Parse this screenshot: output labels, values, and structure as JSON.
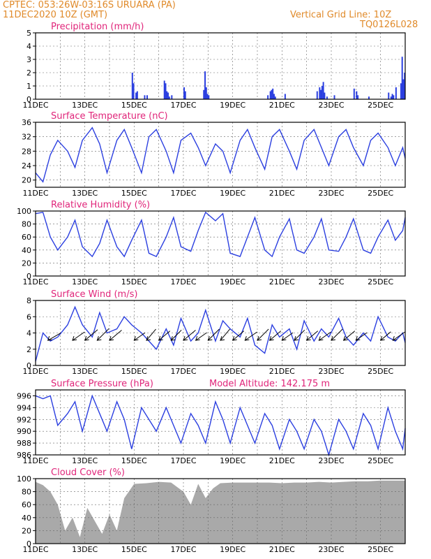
{
  "header": {
    "line1": "CPTEC:   053:26W-03:16S   URUARA (PA)",
    "line2": "11DEC2020 10Z (GMT)",
    "grid_note": "Vertical Grid Line: 10Z",
    "code": "TQ0126L028",
    "model_altitude": "Model Altitude: 142.175 m"
  },
  "colors": {
    "series": "#2b3fe0",
    "bars": "#2b3fe0",
    "cloud": "#a9a9a9",
    "title": "#e0257a",
    "header": "#e08a2a",
    "arrow": "#000000"
  },
  "x_ticks": [
    "11DEC",
    "13DEC",
    "15DEC",
    "17DEC",
    "19DEC",
    "21DEC",
    "23DEC",
    "25DEC"
  ],
  "chart_data": [
    {
      "id": "precip",
      "type": "bar",
      "title": "Precipitation (mm/h)",
      "ylim": [
        0,
        5
      ],
      "yticks": [
        0,
        1,
        2,
        3,
        4,
        5
      ],
      "x_days": [
        3.9,
        3.95,
        4.05,
        4.1,
        4.4,
        4.5,
        5.2,
        5.25,
        5.3,
        5.35,
        5.4,
        5.5,
        6.0,
        6.05,
        6.8,
        6.85,
        6.9,
        6.95,
        7.0,
        9.4,
        9.5,
        9.55,
        9.6,
        9.65,
        9.7,
        10.1,
        11.4,
        11.5,
        11.55,
        11.6,
        11.65,
        11.7,
        11.8,
        12.1,
        12.9,
        13.0,
        13.05,
        13.5,
        14.3,
        14.4,
        14.45,
        14.5,
        14.6,
        14.8,
        14.85,
        14.9,
        14.95
      ],
      "values": [
        2.0,
        1.2,
        0.5,
        0.6,
        0.3,
        0.3,
        1.4,
        1.2,
        0.6,
        0.5,
        0.2,
        0.3,
        0.9,
        0.6,
        0.7,
        2.1,
        0.9,
        0.4,
        0.3,
        0.3,
        0.6,
        0.7,
        0.8,
        0.4,
        0.2,
        0.4,
        0.6,
        0.9,
        0.7,
        1.0,
        1.3,
        0.5,
        0.2,
        0.3,
        0.8,
        0.6,
        0.3,
        0.2,
        0.5,
        0.2,
        0.4,
        0.3,
        0.9,
        1.2,
        3.2,
        1.5,
        2.0
      ]
    },
    {
      "id": "temp",
      "type": "line",
      "title": "Surface Temperature (nC)",
      "ylim": [
        18,
        36
      ],
      "yticks": [
        20,
        24,
        28,
        32,
        36
      ],
      "x_days": [
        0,
        0.3,
        0.6,
        0.9,
        1.3,
        1.6,
        1.9,
        2.3,
        2.6,
        2.9,
        3.3,
        3.6,
        3.9,
        4.3,
        4.6,
        4.9,
        5.3,
        5.6,
        5.9,
        6.3,
        6.6,
        6.9,
        7.3,
        7.6,
        7.9,
        8.3,
        8.6,
        8.9,
        9.3,
        9.6,
        9.9,
        10.3,
        10.6,
        10.9,
        11.3,
        11.6,
        11.9,
        12.3,
        12.6,
        12.9,
        13.3,
        13.6,
        13.9,
        14.3,
        14.6,
        14.9,
        15.0
      ],
      "values": [
        22,
        19.5,
        27,
        31,
        28,
        23.5,
        31,
        34.5,
        30,
        22,
        31,
        34,
        29,
        22,
        32,
        34,
        28,
        22,
        31,
        33,
        29,
        24,
        30,
        28,
        22,
        31,
        34,
        29,
        23,
        32,
        34,
        28,
        23,
        31,
        34,
        29,
        24,
        32,
        34,
        29,
        24,
        31,
        33,
        29,
        24,
        29,
        26
      ]
    },
    {
      "id": "rh",
      "type": "line",
      "title": "Relative Humidity (%)",
      "ylim": [
        0,
        100
      ],
      "yticks": [
        0,
        20,
        40,
        60,
        80,
        100
      ],
      "x_days": [
        0,
        0.3,
        0.6,
        0.9,
        1.3,
        1.6,
        1.9,
        2.3,
        2.6,
        2.9,
        3.3,
        3.6,
        3.9,
        4.3,
        4.6,
        4.9,
        5.3,
        5.6,
        5.9,
        6.3,
        6.6,
        6.9,
        7.3,
        7.6,
        7.9,
        8.3,
        8.6,
        8.9,
        9.3,
        9.6,
        9.9,
        10.3,
        10.6,
        10.9,
        11.3,
        11.6,
        11.9,
        12.3,
        12.6,
        12.9,
        13.3,
        13.6,
        13.9,
        14.3,
        14.6,
        14.9,
        15.0
      ],
      "values": [
        96,
        98,
        60,
        40,
        60,
        86,
        45,
        30,
        50,
        86,
        45,
        30,
        55,
        86,
        35,
        30,
        60,
        90,
        45,
        38,
        70,
        98,
        85,
        96,
        35,
        30,
        60,
        90,
        40,
        30,
        60,
        88,
        40,
        35,
        60,
        88,
        40,
        38,
        60,
        88,
        40,
        35,
        60,
        86,
        55,
        70,
        90
      ]
    },
    {
      "id": "wind",
      "type": "line",
      "title": "Surface Wind (m/s)",
      "ylim": [
        0,
        8
      ],
      "yticks": [
        0,
        2,
        4,
        6,
        8
      ],
      "x_days": [
        0,
        0.3,
        0.6,
        0.9,
        1.3,
        1.6,
        1.9,
        2.3,
        2.6,
        2.9,
        3.3,
        3.6,
        3.9,
        4.3,
        4.6,
        4.9,
        5.3,
        5.6,
        5.9,
        6.3,
        6.6,
        6.9,
        7.3,
        7.6,
        7.9,
        8.3,
        8.6,
        8.9,
        9.3,
        9.6,
        9.9,
        10.3,
        10.6,
        10.9,
        11.3,
        11.6,
        11.9,
        12.3,
        12.6,
        12.9,
        13.3,
        13.6,
        13.9,
        14.3,
        14.6,
        14.9,
        15.0
      ],
      "values": [
        0.5,
        4.0,
        3.0,
        3.5,
        5.0,
        7.2,
        5.0,
        3.5,
        6.5,
        4.0,
        4.5,
        6.0,
        5.0,
        4.0,
        3.0,
        2.0,
        4.5,
        2.5,
        5.8,
        3.0,
        4.0,
        6.8,
        3.0,
        5.5,
        4.5,
        3.5,
        5.8,
        2.5,
        1.5,
        5.0,
        3.5,
        4.5,
        2.0,
        5.5,
        3.0,
        4.5,
        3.5,
        5.8,
        3.5,
        2.5,
        4.0,
        3.0,
        6.0,
        3.5,
        3.0,
        4.0,
        2.8
      ],
      "arrows_x_days": [
        0.5,
        1.5,
        2.0,
        2.5,
        3.0,
        4.0,
        4.5,
        5.0,
        5.5,
        6.0,
        6.5,
        7.0,
        7.5,
        8.0,
        8.5,
        9.0,
        9.5,
        10.0,
        10.5,
        11.0,
        11.5,
        12.0,
        12.5,
        13.0,
        14.0,
        14.5
      ],
      "arrows_dir_deg": [
        210,
        215,
        220,
        225,
        220,
        215,
        230,
        220,
        225,
        220,
        215,
        225,
        230,
        220,
        215,
        225,
        220,
        215,
        225,
        220,
        215,
        225,
        220,
        215,
        220,
        215
      ],
      "arrows_speed": [
        3.5,
        3.5,
        4.0,
        4.0,
        3.8,
        3.2,
        3.5,
        3.5,
        3.5,
        3.8,
        3.2,
        3.8,
        3.5,
        3.5,
        3.5,
        3.8,
        3.5,
        3.2,
        3.5,
        3.5,
        3.5,
        3.8,
        3.5,
        3.2,
        3.2,
        3.5
      ]
    },
    {
      "id": "pres",
      "type": "line",
      "title": "Surface Pressure (hPa)",
      "ylim": [
        986,
        997
      ],
      "yticks": [
        986,
        988,
        990,
        992,
        994,
        996
      ],
      "x_days": [
        0,
        0.3,
        0.6,
        0.9,
        1.3,
        1.6,
        1.9,
        2.3,
        2.6,
        2.9,
        3.3,
        3.6,
        3.9,
        4.3,
        4.6,
        4.9,
        5.3,
        5.6,
        5.9,
        6.3,
        6.6,
        6.9,
        7.3,
        7.6,
        7.9,
        8.3,
        8.6,
        8.9,
        9.3,
        9.6,
        9.9,
        10.3,
        10.6,
        10.9,
        11.3,
        11.6,
        11.9,
        12.3,
        12.6,
        12.9,
        13.3,
        13.6,
        13.9,
        14.3,
        14.6,
        14.9,
        15.0
      ],
      "values": [
        996,
        995.5,
        996,
        991,
        993,
        995,
        990,
        996,
        993,
        990,
        995,
        992,
        987,
        994,
        992,
        990,
        994,
        991,
        988,
        993,
        991,
        988,
        995,
        992,
        988,
        994,
        991,
        988,
        993,
        991,
        987,
        992,
        990,
        987,
        992,
        990,
        986,
        992,
        990,
        987,
        993,
        991,
        987,
        994,
        990,
        987,
        990.5
      ]
    },
    {
      "id": "cloud",
      "type": "area",
      "title": "Cloud Cover (%)",
      "ylim": [
        0,
        100
      ],
      "yticks": [
        0,
        20,
        40,
        60,
        80,
        100
      ],
      "x_days": [
        0,
        0.3,
        0.6,
        0.9,
        1.2,
        1.5,
        1.8,
        2.1,
        2.4,
        2.7,
        3.0,
        3.3,
        3.6,
        4.0,
        4.5,
        5.0,
        5.5,
        6.0,
        6.3,
        6.6,
        6.9,
        7.2,
        7.5,
        8.0,
        8.5,
        9.0,
        9.5,
        10.0,
        10.5,
        11.0,
        11.5,
        12.0,
        12.5,
        13.0,
        13.5,
        14.0,
        14.5,
        15.0
      ],
      "values": [
        95,
        90,
        80,
        60,
        20,
        40,
        10,
        55,
        35,
        15,
        45,
        20,
        70,
        92,
        93,
        95,
        94,
        80,
        60,
        92,
        70,
        85,
        93,
        94,
        94,
        94,
        94,
        93,
        94,
        94,
        95,
        94,
        95,
        96,
        96,
        97,
        97,
        97
      ]
    }
  ]
}
